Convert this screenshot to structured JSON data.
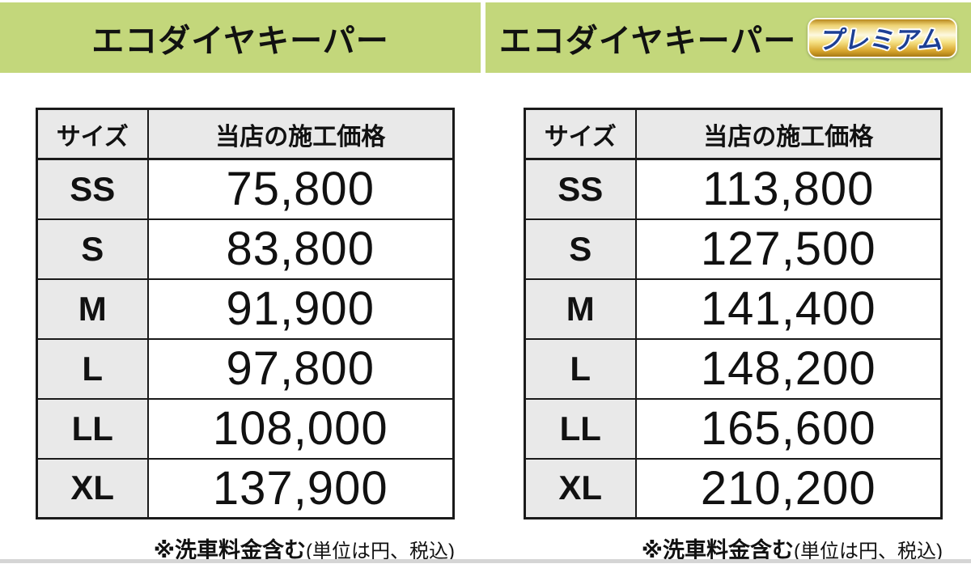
{
  "colors": {
    "band_green": "#c3d77b",
    "cell_gray": "#e9e9e9",
    "border_black": "#1a1a1a",
    "badge_blue": "#1c3f94",
    "badge_gold": "#d9a72e"
  },
  "left_panel": {
    "title": "エコダイヤキーパー",
    "table": {
      "col_headers": [
        "サイズ",
        "当店の施工価格"
      ],
      "rows": [
        {
          "size": "SS",
          "price": "75,800"
        },
        {
          "size": "S",
          "price": "83,800"
        },
        {
          "size": "M",
          "price": "91,900"
        },
        {
          "size": "L",
          "price": "97,800"
        },
        {
          "size": "LL",
          "price": "108,000"
        },
        {
          "size": "XL",
          "price": "137,900"
        }
      ]
    },
    "footnote": {
      "bold": "※洗車料金含む",
      "regular": "(単位は円、税込)"
    }
  },
  "right_panel": {
    "title": "エコダイヤキーパー",
    "badge_label": "プレミアム",
    "table": {
      "col_headers": [
        "サイズ",
        "当店の施工価格"
      ],
      "rows": [
        {
          "size": "SS",
          "price": "113,800"
        },
        {
          "size": "S",
          "price": "127,500"
        },
        {
          "size": "M",
          "price": "141,400"
        },
        {
          "size": "L",
          "price": "148,200"
        },
        {
          "size": "LL",
          "price": "165,600"
        },
        {
          "size": "XL",
          "price": "210,200"
        }
      ]
    },
    "footnote": {
      "bold": "※洗車料金含む",
      "regular": "(単位は円、税込)"
    }
  }
}
